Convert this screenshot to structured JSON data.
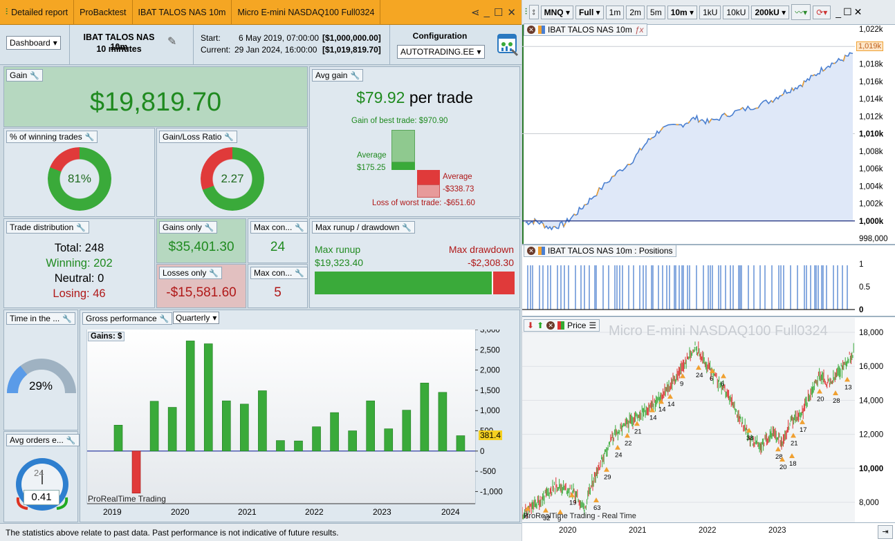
{
  "left_window": {
    "tabs": [
      "Detailed report",
      "ProBacktest",
      "IBAT TALOS NAS 10m",
      "Micro E-mini NASDAQ100 Full0324"
    ],
    "window_controls": [
      "share",
      "minimize",
      "maximize",
      "close"
    ]
  },
  "header": {
    "view_select": "Dashboard",
    "system_name": "IBAT TALOS NAS 10m",
    "timeframe": "10 minutes",
    "start_label": "Start:",
    "start_date": "6 May 2019, 07:00:00",
    "start_value": "[$1,000,000.00]",
    "current_label": "Current:",
    "current_date": "29 Jan 2024, 16:00:00",
    "current_value": "[$1,019,819.70]",
    "config_label": "Configuration",
    "config_value": "AUTOTRADING.EE"
  },
  "gain": {
    "title": "Gain",
    "value": "$19,819.70"
  },
  "avg_gain": {
    "title": "Avg gain",
    "value": "$79.92",
    "suffix": "per trade",
    "best_label": "Gain of best trade: $970.90",
    "avg_win_label": "Average",
    "avg_win_value": "$175.25",
    "avg_loss_label": "Average",
    "avg_loss_value": "-$338.73",
    "worst_label": "Loss of worst trade: -$651.60"
  },
  "winning_pct": {
    "title": "% of winning trades",
    "value": "81%",
    "fraction": 0.81
  },
  "gain_loss": {
    "title": "Gain/Loss Ratio",
    "value": "2.27",
    "fraction": 0.694
  },
  "trade_distribution": {
    "title": "Trade distribution",
    "total": "Total: 248",
    "winning": "Winning: 202",
    "neutral": "Neutral: 0",
    "losing": "Losing: 46"
  },
  "gains_only": {
    "title": "Gains only",
    "value": "$35,401.30"
  },
  "losses_only": {
    "title": "Losses only",
    "value": "-$15,581.60"
  },
  "max_consec_win": {
    "title": "Max con...",
    "value": "24"
  },
  "max_consec_loss": {
    "title": "Max con...",
    "value": "5"
  },
  "runup": {
    "title": "Max runup / drawdown",
    "runup_label": "Max runup",
    "runup_value": "$19,323.40",
    "drawdown_label": "Max drawdown",
    "drawdown_value": "-$2,308.30",
    "runup_fraction": 0.893
  },
  "time_in_market": {
    "title": "Time in the ...",
    "value": "29%",
    "fraction": 0.29
  },
  "avg_orders": {
    "title": "Avg orders e...",
    "value": "0.41",
    "clock_label": "24"
  },
  "gross_perf": {
    "title": "Gross performance",
    "period_select": "Quarterly",
    "gains_label": "Gains: $",
    "watermark": "ProRealTime Trading",
    "current_value_tag": "381.4",
    "y_ticks": [
      "3,000",
      "2,500",
      "2,000",
      "1,500",
      "1,000",
      "500",
      "0",
      "-500",
      "-1,000"
    ],
    "x_labels": [
      "2019",
      "2020",
      "2021",
      "2022",
      "2023",
      "2024"
    ]
  },
  "chart_data": {
    "type": "bar",
    "title": "Gross performance",
    "ylabel": "Gains: $",
    "ylim": [
      -1300,
      3000
    ],
    "categories": [
      "2019Q2",
      "2019Q3",
      "2019Q4",
      "2020Q1",
      "2020Q2",
      "2020Q3",
      "2020Q4",
      "2021Q1",
      "2021Q2",
      "2021Q3",
      "2021Q4",
      "2022Q1",
      "2022Q2",
      "2022Q3",
      "2022Q4",
      "2023Q1",
      "2023Q2",
      "2023Q3",
      "2023Q4",
      "2024Q1"
    ],
    "values": [
      640,
      -1040,
      1230,
      1080,
      2720,
      2650,
      1240,
      1160,
      1490,
      260,
      250,
      600,
      950,
      500,
      1240,
      550,
      1010,
      1680,
      1450,
      380
    ]
  },
  "statusbar": "The statistics above relate to past data. Past performance is not indicative of future results.",
  "right_window": {
    "toolbar": {
      "symbol": "MNQ",
      "range": "Full",
      "tf_buttons": [
        "1m",
        "2m",
        "5m"
      ],
      "tf_selected": "10m",
      "unit_buttons": [
        "1kU",
        "10kU"
      ],
      "units_selected": "200kU"
    },
    "equity": {
      "title": "IBAT TALOS NAS 10m",
      "y_ticks": [
        "1,022k",
        "1,020k",
        "1,018k",
        "1,016k",
        "1,014k",
        "1,012k",
        "1,010k",
        "1,008k",
        "1,006k",
        "1,004k",
        "1,002k",
        "1,000k",
        "998,000"
      ],
      "last_tag": "1,019k"
    },
    "positions": {
      "title": "IBAT TALOS NAS 10m : Positions",
      "y_ticks": [
        "1",
        "0.5",
        "0"
      ]
    },
    "price": {
      "title": "Price",
      "instrument": "Micro E-mini NASDAQ100 Full0324",
      "watermark": "ProRealTime Trading - Real Time",
      "y_ticks": [
        "18,000",
        "16,000",
        "14,000",
        "12,000",
        "10,000",
        "8,000"
      ],
      "x_labels": [
        "2020",
        "2021",
        "2022",
        "2023"
      ],
      "trade_labels": [
        "6",
        "32",
        "9",
        "19",
        "63",
        "29",
        "24",
        "22",
        "21",
        "14",
        "14",
        "14",
        "9",
        "24",
        "6",
        "6",
        "38",
        "28",
        "20",
        "18",
        "21",
        "17",
        "20",
        "28",
        "13"
      ]
    }
  }
}
